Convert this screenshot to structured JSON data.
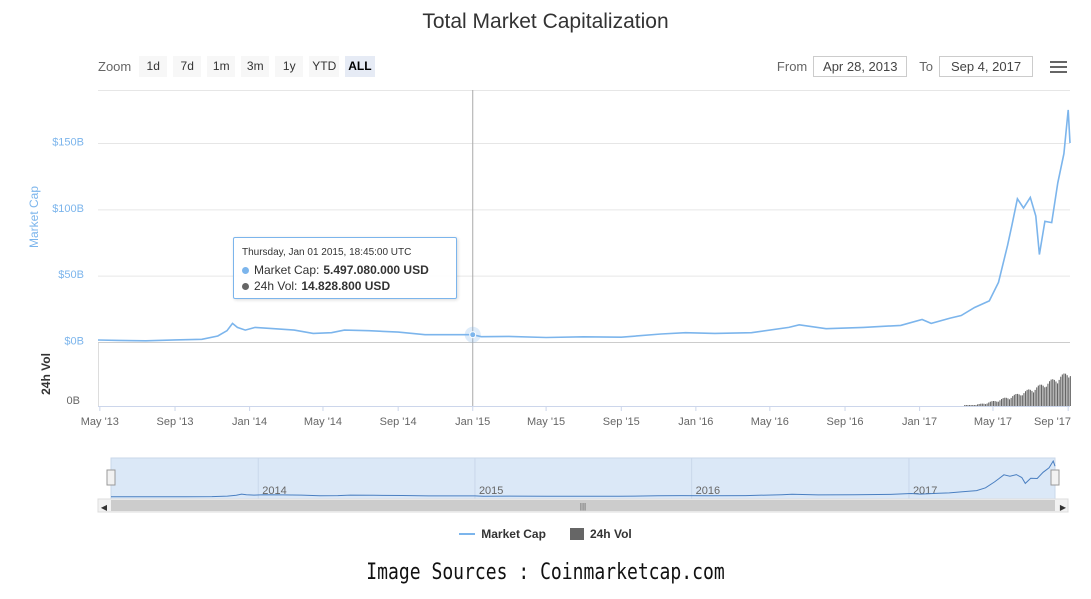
{
  "title": "Total Market Capitalization",
  "zoom": {
    "label": "Zoom",
    "buttons": [
      "1d",
      "7d",
      "1m",
      "3m",
      "1y",
      "YTD",
      "ALL"
    ],
    "active": "ALL"
  },
  "range": {
    "from_label": "From",
    "from_value": "Apr 28, 2013",
    "to_label": "To",
    "to_value": "Sep 4, 2017"
  },
  "menu_icon": "hamburger-menu-icon",
  "tooltip": {
    "date": "Thursday, Jan 01 2015, 18:45:00 UTC",
    "rows": [
      {
        "label": "Market Cap:",
        "value": "5.497.080.000 USD",
        "color": "#7cb5ec"
      },
      {
        "label": "24h Vol:",
        "value": "14.828.800 USD",
        "color": "#666666"
      }
    ]
  },
  "legend": {
    "items": [
      {
        "label": "Market Cap",
        "color": "#7cb5ec",
        "shape": "line"
      },
      {
        "label": "24h Vol",
        "color": "#666666",
        "shape": "box"
      }
    ]
  },
  "navigator": {
    "labels": [
      "2014",
      "2015",
      "2016",
      "2017"
    ]
  },
  "caption": "Image Sources : Coinmarketcap.com",
  "colors": {
    "market_cap": "#7cb5ec",
    "volume": "#666666",
    "navigator_fill": "#dbe8f7",
    "crosshair": "#aaaaaa"
  },
  "chart_data": {
    "type": "line",
    "x_axis": {
      "type": "datetime",
      "range": [
        "2013-04-28",
        "2017-09-04"
      ],
      "ticks": [
        "May '13",
        "Sep '13",
        "Jan '14",
        "May '14",
        "Sep '14",
        "Jan '15",
        "May '15",
        "Sep '15",
        "Jan '16",
        "May '16",
        "Sep '16",
        "Jan '17",
        "May '17",
        "Sep '17"
      ]
    },
    "y_axis": {
      "label": "Market Cap",
      "unit": "USD billions",
      "range": [
        0,
        190
      ],
      "ticks": [
        "$0B",
        "$50B",
        "$100B",
        "$150B"
      ]
    },
    "volume_axis": {
      "label": "24h Vol",
      "ticks": [
        "0B"
      ]
    },
    "crosshair_date": "2015-01-01",
    "series": [
      {
        "name": "Market Cap",
        "x": [
          "2013-04-28",
          "2013-06-01",
          "2013-07-15",
          "2013-09-01",
          "2013-10-15",
          "2013-11-10",
          "2013-11-25",
          "2013-12-04",
          "2013-12-12",
          "2013-12-25",
          "2014-01-10",
          "2014-02-10",
          "2014-03-15",
          "2014-04-15",
          "2014-05-15",
          "2014-06-05",
          "2014-07-15",
          "2014-09-01",
          "2014-10-15",
          "2014-12-01",
          "2015-01-01",
          "2015-01-15",
          "2015-03-01",
          "2015-05-01",
          "2015-07-01",
          "2015-09-01",
          "2015-11-05",
          "2015-12-15",
          "2016-02-01",
          "2016-04-01",
          "2016-06-01",
          "2016-06-18",
          "2016-08-01",
          "2016-10-01",
          "2016-12-01",
          "2017-01-05",
          "2017-01-20",
          "2017-02-20",
          "2017-03-10",
          "2017-04-01",
          "2017-04-25",
          "2017-05-10",
          "2017-05-25",
          "2017-06-01",
          "2017-06-10",
          "2017-06-20",
          "2017-07-01",
          "2017-07-10",
          "2017-07-16",
          "2017-07-25",
          "2017-08-05",
          "2017-08-15",
          "2017-08-25",
          "2017-09-01",
          "2017-09-04"
        ],
        "values": [
          1.5,
          1.2,
          0.9,
          1.6,
          2.0,
          4.5,
          8.5,
          14,
          11,
          9,
          11,
          10,
          9,
          6.5,
          7,
          9,
          8.5,
          7.5,
          5.5,
          5.5,
          5.5,
          4,
          4.2,
          3.4,
          3.9,
          3.6,
          6,
          7,
          6.5,
          7,
          11,
          13,
          10,
          11,
          12.5,
          17,
          14,
          18,
          20,
          26,
          31,
          45,
          73,
          88,
          108,
          101,
          109,
          95,
          66,
          91,
          90,
          120,
          142,
          175,
          150
        ]
      },
      {
        "name": "24h Vol",
        "note": "volume shown as histogram in lower pane; negligible before 2017, rising sharply from Apr 2017 to Sep 2017"
      }
    ]
  }
}
